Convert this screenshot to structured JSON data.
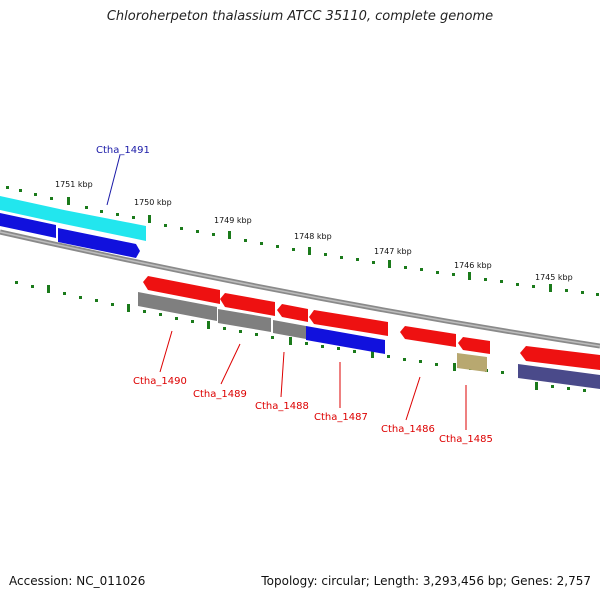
{
  "title": "Chloroherpeton thalassium ATCC 35110, complete genome",
  "footer": {
    "accession": "Accession: NC_011026",
    "summary": "Topology: circular; Length: 3,293,456 bp; Genes: 2,757"
  },
  "scale_labels": [
    "1751 kbp",
    "1750 kbp",
    "1749 kbp",
    "1748 kbp",
    "1747 kbp",
    "1746 kbp",
    "1745 kbp"
  ],
  "gene_labels": [
    {
      "text": "Ctha_1491",
      "color": "#1a1aa8"
    },
    {
      "text": "Ctha_1490",
      "color": "#dd0000"
    },
    {
      "text": "Ctha_1489",
      "color": "#dd0000"
    },
    {
      "text": "Ctha_1488",
      "color": "#dd0000"
    },
    {
      "text": "Ctha_1487",
      "color": "#dd0000"
    },
    {
      "text": "Ctha_1486",
      "color": "#dd0000"
    },
    {
      "text": "Ctha_1485",
      "color": "#dd0000"
    }
  ],
  "colors": {
    "cds": "#ee1111",
    "rna": "#7f7f7f",
    "cyan": "#22e6ee",
    "blue": "#1111dd",
    "purple": "#4a4a8a",
    "tan": "#b8a870",
    "backbone": "#888888",
    "tick": "#1b7a1b"
  }
}
